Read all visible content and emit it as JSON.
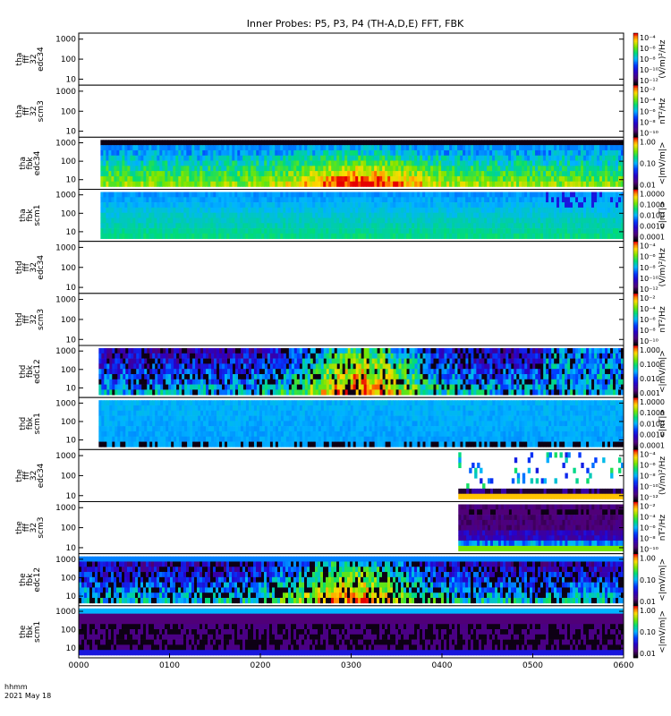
{
  "chart_data": {
    "type": "heatmap",
    "title": "Inner Probes: P5, P3, P4 (TH-A,D,E) FFT, FBK",
    "x": {
      "ticks": [
        "0000",
        "0100",
        "0200",
        "0300",
        "0400",
        "0500",
        "0600"
      ],
      "range_hours": [
        0,
        6
      ]
    },
    "time_label": {
      "line1": "hhmm",
      "line2": "2021 May 18"
    },
    "panels": [
      {
        "id": "tha_fft_edc34",
        "label": [
          "tha",
          "fff",
          "32",
          "edc34"
        ],
        "yticks": [
          "1000",
          "100",
          "10"
        ],
        "ylim": [
          5,
          2000
        ],
        "y_scale": "log",
        "data_start": null,
        "data_end": null,
        "style": "none",
        "colorbar": {
          "ticks": [
            "10⁻⁴",
            "10⁻⁶",
            "10⁻⁸",
            "10⁻¹⁰",
            "10⁻¹²"
          ],
          "unit": "(V/m)²/Hz"
        }
      },
      {
        "id": "tha_fft_scm3",
        "label": [
          "tha",
          "fff",
          "32",
          "scm3"
        ],
        "yticks": [
          "1000",
          "100",
          "10"
        ],
        "ylim": [
          5,
          2000
        ],
        "y_scale": "log",
        "data_start": null,
        "data_end": null,
        "style": "none",
        "colorbar": {
          "ticks": [
            "10⁻²",
            "10⁻⁴",
            "10⁻⁶",
            "10⁻⁸",
            "10⁻¹⁰"
          ],
          "unit": "nT²/Hz"
        }
      },
      {
        "id": "tha_fbk_edc34",
        "label": [
          "tha",
          "fbk",
          "edc34"
        ],
        "yticks": [
          "1000",
          "100",
          "10"
        ],
        "ylim": [
          3,
          2000
        ],
        "y_scale": "log",
        "data_start": 0.24,
        "data_end": 6.0,
        "style": "edc_a",
        "colorbar": {
          "ticks": [
            "1.00",
            "0.10",
            "0.01"
          ],
          "unit": "<|mV/m|>"
        }
      },
      {
        "id": "tha_fbk_scm1",
        "label": [
          "tha",
          "fbk",
          "scm1"
        ],
        "yticks": [
          "1000",
          "100",
          "10"
        ],
        "ylim": [
          3,
          2000
        ],
        "y_scale": "log",
        "data_start": 0.24,
        "data_end": 6.0,
        "style": "scm_a",
        "colorbar": {
          "ticks": [
            "1.0000",
            "0.1000",
            "0.0100",
            "0.0010",
            "0.0001"
          ],
          "unit": "<|nT|>"
        }
      },
      {
        "id": "thd_fft_edc34",
        "label": [
          "thd",
          "fff",
          "32",
          "edc34"
        ],
        "yticks": [
          "1000",
          "100",
          "10"
        ],
        "ylim": [
          5,
          2000
        ],
        "y_scale": "log",
        "data_start": null,
        "data_end": null,
        "style": "none",
        "colorbar": {
          "ticks": [
            "10⁻⁴",
            "10⁻⁶",
            "10⁻⁸",
            "10⁻¹⁰",
            "10⁻¹²"
          ],
          "unit": "(V/m)²/Hz"
        }
      },
      {
        "id": "thd_fft_scm3",
        "label": [
          "thd",
          "fff",
          "32",
          "scm3"
        ],
        "yticks": [
          "1000",
          "100",
          "10"
        ],
        "ylim": [
          5,
          2000
        ],
        "y_scale": "log",
        "data_start": null,
        "data_end": null,
        "style": "none",
        "colorbar": {
          "ticks": [
            "10⁻²",
            "10⁻⁴",
            "10⁻⁶",
            "10⁻⁸",
            "10⁻¹⁰"
          ],
          "unit": "nT²/Hz"
        }
      },
      {
        "id": "thd_fbk_edc12",
        "label": [
          "thd",
          "fbk",
          "edc12"
        ],
        "yticks": [
          "1000",
          "100",
          "10"
        ],
        "ylim": [
          3,
          2000
        ],
        "y_scale": "log",
        "data_start": 0.22,
        "data_end": 6.0,
        "style": "edc_d",
        "colorbar": {
          "ticks": [
            "1.000",
            "0.100",
            "0.010",
            "0.001"
          ],
          "unit": "<|mV/m|>"
        }
      },
      {
        "id": "thd_fbk_scm1",
        "label": [
          "thd",
          "fbk",
          "scm1"
        ],
        "yticks": [
          "1000",
          "100",
          "10"
        ],
        "ylim": [
          3,
          2000
        ],
        "y_scale": "log",
        "data_start": 0.22,
        "data_end": 6.0,
        "style": "scm_d",
        "colorbar": {
          "ticks": [
            "1.0000",
            "0.1000",
            "0.0100",
            "0.0010",
            "0.0001"
          ],
          "unit": "<|nT|>"
        }
      },
      {
        "id": "the_fft_edc34",
        "label": [
          "the",
          "fff",
          "32",
          "edc34"
        ],
        "yticks": [
          "1000",
          "100",
          "10"
        ],
        "ylim": [
          5,
          2000
        ],
        "y_scale": "log",
        "data_start": 4.18,
        "data_end": 6.0,
        "style": "fft_e_edc",
        "colorbar": {
          "ticks": [
            "10⁻⁴",
            "10⁻⁶",
            "10⁻⁸",
            "10⁻¹⁰",
            "10⁻¹²"
          ],
          "unit": "(V/m)²/Hz"
        }
      },
      {
        "id": "the_fft_scm3",
        "label": [
          "the",
          "fff",
          "32",
          "scm3"
        ],
        "yticks": [
          "1000",
          "100",
          "10"
        ],
        "ylim": [
          5,
          2000
        ],
        "y_scale": "log",
        "data_start": 4.18,
        "data_end": 6.0,
        "style": "fft_e_scm",
        "colorbar": {
          "ticks": [
            "10⁻²",
            "10⁻⁴",
            "10⁻⁶",
            "10⁻⁸",
            "10⁻¹⁰"
          ],
          "unit": "nT²/Hz"
        }
      },
      {
        "id": "the_fbk_edc12",
        "label": [
          "the",
          "fbk",
          "edc12"
        ],
        "yticks": [
          "1000",
          "100",
          "10"
        ],
        "ylim": [
          3,
          2000
        ],
        "y_scale": "log",
        "data_start": 0.0,
        "data_end": 6.0,
        "style": "edc_e",
        "colorbar": {
          "ticks": [
            "1.00",
            "0.10",
            "0.01"
          ],
          "unit": "<|mV/m|>"
        }
      },
      {
        "id": "the_fbk_scm1",
        "label": [
          "the",
          "fbk",
          "scm1"
        ],
        "yticks": [
          "1000",
          "100",
          "10"
        ],
        "ylim": [
          3,
          2000
        ],
        "y_scale": "log",
        "data_start": 0.0,
        "data_end": 6.0,
        "style": "scm_e",
        "colorbar": {
          "ticks": [
            "1.00",
            "0.10",
            "0.01"
          ],
          "unit": "<|mV/m|>"
        }
      }
    ]
  }
}
